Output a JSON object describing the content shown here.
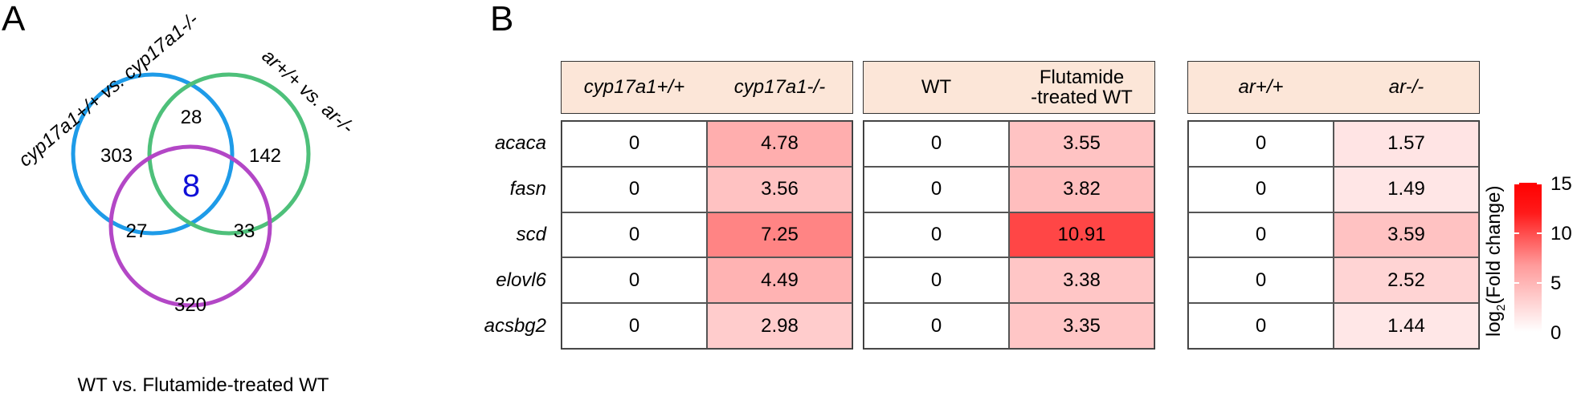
{
  "panel_a": {
    "letter": "A",
    "labels": {
      "cyp": "cyp17a1+/+ vs. cyp17a1-/-",
      "ar": "ar+/+ vs. ar-/-",
      "wt": "WT vs. Flutamide-treated WT"
    },
    "counts": {
      "cyp_only": "303",
      "cyp_ar": "28",
      "ar_only": "142",
      "all_three": "8",
      "cyp_wt": "27",
      "ar_wt": "33",
      "wt_only": "320"
    },
    "colors": {
      "cyp": "#1e9be8",
      "ar": "#4ec07a",
      "wt": "#b347c6",
      "center": "#1010d8"
    }
  },
  "panel_b": {
    "letter": "B",
    "genes": [
      "acaca",
      "fasn",
      "scd",
      "elovl6",
      "acsbg2"
    ],
    "groups": [
      {
        "headers": [
          "cyp17a1+/+",
          "cyp17a1-/-"
        ],
        "italic": true,
        "values": [
          [
            0,
            4.78
          ],
          [
            0,
            3.56
          ],
          [
            0,
            7.25
          ],
          [
            0,
            4.49
          ],
          [
            0,
            2.98
          ]
        ]
      },
      {
        "headers": [
          "WT",
          "Flutamide\n-treated WT"
        ],
        "italic": false,
        "values": [
          [
            0,
            3.55
          ],
          [
            0,
            3.82
          ],
          [
            0,
            10.91
          ],
          [
            0,
            3.38
          ],
          [
            0,
            3.35
          ]
        ]
      },
      {
        "headers": [
          "ar+/+",
          "ar-/-"
        ],
        "italic": true,
        "values": [
          [
            0,
            1.57
          ],
          [
            0,
            1.49
          ],
          [
            0,
            3.59
          ],
          [
            0,
            2.52
          ],
          [
            0,
            1.44
          ]
        ]
      }
    ],
    "legend": {
      "title_main": "log",
      "title_sub": "2",
      "title_rest": "(Fold change)",
      "ticks": [
        "15",
        "10",
        "5",
        "0"
      ],
      "max": 15
    }
  }
}
